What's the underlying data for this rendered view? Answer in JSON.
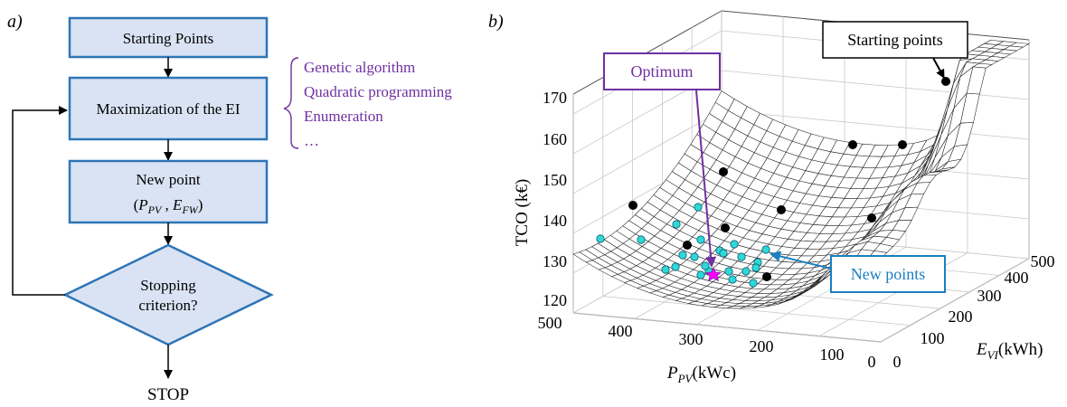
{
  "panel_a": {
    "label": "a)",
    "flow": {
      "start": "Starting Points",
      "maximize": "Maximization of the EI",
      "new_point_line1": "New point",
      "new_point_p": "P",
      "new_point_p_sub": "PV",
      "new_point_e": "E",
      "new_point_e_sub": "FW",
      "decision_line1": "Stopping",
      "decision_line2": "criterion?",
      "stop": "STOP"
    },
    "methods": [
      "Genetic algorithm",
      "Quadratic programming",
      "Enumeration",
      "…"
    ]
  },
  "panel_b": {
    "label": "b)",
    "z_axis": {
      "label": "TCO  (k€)",
      "ticks": [
        "120",
        "130",
        "140",
        "150",
        "160",
        "170"
      ]
    },
    "x_axis": {
      "label_main": "P",
      "label_sub": "PV",
      "label_unit": "(kWc)",
      "ticks": [
        "500",
        "400",
        "300",
        "200",
        "100",
        "0"
      ]
    },
    "y_axis": {
      "label_main": "E",
      "label_sub": "VI",
      "label_unit": "(kWh)",
      "ticks": [
        "0",
        "100",
        "200",
        "300",
        "400",
        "500"
      ]
    },
    "callouts": {
      "optimum": "Optimum",
      "starting": "Starting points",
      "new_points": "New points"
    },
    "colors": {
      "optimum": "#7030a0",
      "new_points": "#1b7fc1",
      "new_point_fill": "#2ed8d8",
      "optimum_marker": "#ff00ff",
      "starting_point": "#000000"
    }
  }
}
